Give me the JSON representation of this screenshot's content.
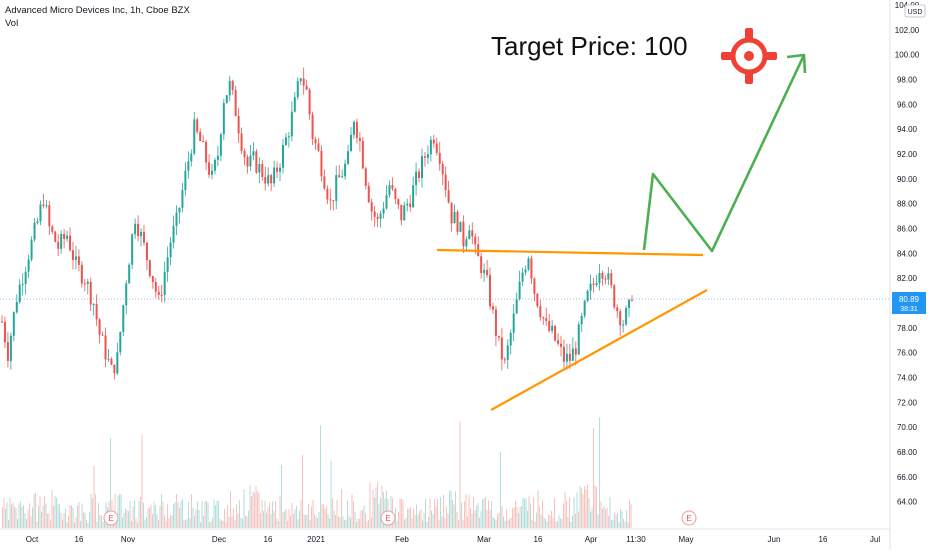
{
  "header": {
    "symbol": "Advanced Micro Devices Inc, 1h, Cboe BZX",
    "volume_label": "Vol",
    "currency_badge": "USD"
  },
  "annotation": {
    "target_text": "Target Price: 100",
    "icon": "crosshair-target-icon",
    "icon_color": "#ef4136",
    "trend_line_color": "#ff9800",
    "projection_color": "#4caf50"
  },
  "price_label": {
    "last_price": "80.89",
    "countdown": "38:31",
    "color": "#2196f3"
  },
  "colors": {
    "up": "#26a69a",
    "down": "#ef5350"
  },
  "chart_data": {
    "type": "candlestick",
    "title": "Advanced Micro Devices Inc, 1h, Cboe BZX",
    "ylim": [
      63,
      104
    ],
    "yticks": [
      "104.00",
      "102.00",
      "100.00",
      "98.00",
      "96.00",
      "94.00",
      "92.00",
      "90.00",
      "88.00",
      "86.00",
      "84.00",
      "82.00",
      "80.00",
      "78.00",
      "76.00",
      "74.00",
      "72.00",
      "70.00",
      "68.00",
      "66.00",
      "64.00"
    ],
    "xtick_labels": [
      "Oct",
      "16",
      "Nov",
      "Dec",
      "16",
      "2021",
      "Feb",
      "Mar",
      "16",
      "Apr",
      "11:30",
      "May",
      "Jun",
      "16",
      "Jul"
    ],
    "earnings_markers": [
      "E",
      "E",
      "E"
    ],
    "price_path": [
      [
        0,
        78.5
      ],
      [
        2,
        76.0
      ],
      [
        5,
        80.5
      ],
      [
        9,
        84.0
      ],
      [
        12,
        86.5
      ],
      [
        14,
        88.5
      ],
      [
        16,
        86.0
      ],
      [
        19,
        84.5
      ],
      [
        22,
        85.5
      ],
      [
        25,
        83.0
      ],
      [
        28,
        82.0
      ],
      [
        31,
        80.0
      ],
      [
        33,
        77.5
      ],
      [
        35,
        76.0
      ],
      [
        37,
        74.5
      ],
      [
        39,
        75.5
      ],
      [
        42,
        82.0
      ],
      [
        45,
        87.0
      ],
      [
        48,
        84.5
      ],
      [
        51,
        82.0
      ],
      [
        53,
        80.0
      ],
      [
        55,
        82.5
      ],
      [
        57,
        85.0
      ],
      [
        59,
        86.5
      ],
      [
        61,
        89.0
      ],
      [
        63,
        91.5
      ],
      [
        65,
        94.0
      ],
      [
        67,
        93.0
      ],
      [
        69,
        91.5
      ],
      [
        71,
        90.0
      ],
      [
        73,
        92.0
      ],
      [
        75,
        96.5
      ],
      [
        77,
        97.5
      ],
      [
        79,
        95.5
      ],
      [
        81,
        93.0
      ],
      [
        83,
        91.0
      ],
      [
        85,
        91.5
      ],
      [
        88,
        90.5
      ],
      [
        91,
        89.5
      ],
      [
        94,
        91.5
      ],
      [
        97,
        94.0
      ],
      [
        99,
        96.0
      ],
      [
        101,
        98.5
      ],
      [
        103,
        97.0
      ],
      [
        105,
        93.5
      ],
      [
        107,
        92.0
      ],
      [
        109,
        90.0
      ],
      [
        111,
        88.0
      ],
      [
        113,
        89.5
      ],
      [
        115,
        90.5
      ],
      [
        117,
        91.5
      ],
      [
        119,
        95.0
      ],
      [
        121,
        93.0
      ],
      [
        123,
        90.0
      ],
      [
        125,
        87.5
      ],
      [
        127,
        86.5
      ],
      [
        129,
        88.0
      ],
      [
        131,
        89.5
      ],
      [
        133,
        88.0
      ],
      [
        135,
        87.0
      ],
      [
        138,
        88.5
      ],
      [
        141,
        90.5
      ],
      [
        144,
        92.5
      ],
      [
        146,
        93.5
      ],
      [
        148,
        92.0
      ],
      [
        150,
        89.5
      ],
      [
        152,
        87.0
      ],
      [
        154,
        86.5
      ],
      [
        156,
        85.0
      ],
      [
        158,
        86.5
      ],
      [
        160,
        84.0
      ],
      [
        162,
        83.0
      ],
      [
        164,
        81.5
      ],
      [
        166,
        79.0
      ],
      [
        168,
        76.5
      ],
      [
        170,
        75.0
      ],
      [
        172,
        77.5
      ],
      [
        174,
        80.0
      ],
      [
        176,
        82.5
      ],
      [
        178,
        84.0
      ],
      [
        180,
        81.0
      ],
      [
        182,
        79.5
      ],
      [
        184,
        78.0
      ],
      [
        186,
        77.5
      ],
      [
        188,
        76.5
      ],
      [
        190,
        75.5
      ],
      [
        192,
        75.5
      ],
      [
        194,
        76.5
      ],
      [
        196,
        78.5
      ],
      [
        198,
        80.5
      ],
      [
        200,
        81.5
      ],
      [
        202,
        83.0
      ],
      [
        204,
        82.5
      ],
      [
        206,
        81.0
      ],
      [
        208,
        79.5
      ],
      [
        210,
        78.5
      ],
      [
        212,
        79.5
      ],
      [
        213,
        80.9
      ]
    ],
    "volume_profile": [
      0.4,
      0.5,
      0.6,
      0.4,
      0.3,
      0.5,
      0.7,
      0.4,
      0.3,
      0.6,
      0.5,
      0.4,
      0.3,
      0.6,
      0.7,
      0.5,
      0.4,
      0.3,
      0.5,
      0.6,
      0.4,
      0.8,
      0.5,
      0.3,
      0.4,
      0.6,
      0.5,
      0.4,
      0.3,
      0.5,
      0.6,
      0.4,
      0.5,
      0.9,
      0.4,
      0.3
    ]
  }
}
